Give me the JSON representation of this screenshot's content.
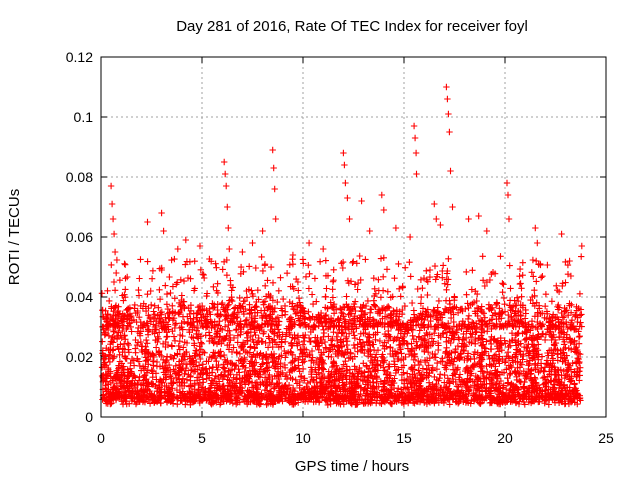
{
  "chart_data": {
    "type": "scatter",
    "title": "Day 281 of 2016, Rate Of TEC Index for receiver foyl",
    "xlabel": "GPS time / hours",
    "ylabel": "ROTI / TECUs",
    "xlim": [
      0,
      25
    ],
    "ylim": [
      0,
      0.12
    ],
    "xticks": [
      0,
      5,
      10,
      15,
      20,
      25
    ],
    "xtick_labels": [
      "0",
      "5",
      "10",
      "15",
      "20",
      "25"
    ],
    "yticks": [
      0,
      0.02,
      0.04,
      0.06,
      0.08,
      0.1,
      0.12
    ],
    "ytick_labels": [
      "0",
      "0.02",
      "0.04",
      "0.06",
      "0.08",
      "0.1",
      "0.12"
    ],
    "grid": true,
    "marker": "+",
    "series_color": "#ff0000",
    "series": [
      {
        "name": "ROTI",
        "points": [
          [
            0.5,
            0.077
          ],
          [
            0.55,
            0.071
          ],
          [
            0.6,
            0.066
          ],
          [
            0.65,
            0.061
          ],
          [
            0.7,
            0.055
          ],
          [
            0.75,
            0.048
          ],
          [
            2.3,
            0.065
          ],
          [
            3.0,
            0.068
          ],
          [
            3.1,
            0.062
          ],
          [
            3.8,
            0.056
          ],
          [
            4.2,
            0.059
          ],
          [
            4.9,
            0.057
          ],
          [
            6.1,
            0.085
          ],
          [
            6.15,
            0.081
          ],
          [
            6.2,
            0.077
          ],
          [
            6.25,
            0.07
          ],
          [
            6.3,
            0.063
          ],
          [
            6.35,
            0.056
          ],
          [
            7.0,
            0.055
          ],
          [
            7.5,
            0.058
          ],
          [
            8.0,
            0.062
          ],
          [
            8.5,
            0.089
          ],
          [
            8.55,
            0.083
          ],
          [
            8.6,
            0.076
          ],
          [
            8.65,
            0.066
          ],
          [
            9.5,
            0.054
          ],
          [
            10.3,
            0.058
          ],
          [
            11.0,
            0.056
          ],
          [
            12.0,
            0.088
          ],
          [
            12.05,
            0.084
          ],
          [
            12.1,
            0.078
          ],
          [
            12.2,
            0.073
          ],
          [
            12.3,
            0.066
          ],
          [
            12.9,
            0.072
          ],
          [
            13.3,
            0.062
          ],
          [
            13.9,
            0.074
          ],
          [
            14.0,
            0.069
          ],
          [
            14.6,
            0.063
          ],
          [
            15.3,
            0.06
          ],
          [
            15.5,
            0.097
          ],
          [
            15.55,
            0.093
          ],
          [
            15.6,
            0.088
          ],
          [
            15.62,
            0.081
          ],
          [
            16.5,
            0.071
          ],
          [
            16.6,
            0.066
          ],
          [
            16.8,
            0.064
          ],
          [
            17.1,
            0.11
          ],
          [
            17.15,
            0.106
          ],
          [
            17.2,
            0.101
          ],
          [
            17.25,
            0.095
          ],
          [
            17.3,
            0.082
          ],
          [
            17.4,
            0.07
          ],
          [
            18.2,
            0.066
          ],
          [
            18.7,
            0.067
          ],
          [
            19.1,
            0.062
          ],
          [
            20.1,
            0.078
          ],
          [
            20.15,
            0.074
          ],
          [
            20.2,
            0.066
          ],
          [
            21.5,
            0.063
          ],
          [
            21.6,
            0.058
          ],
          [
            22.8,
            0.061
          ],
          [
            23.2,
            0.052
          ],
          [
            23.8,
            0.057
          ]
        ]
      }
    ]
  }
}
